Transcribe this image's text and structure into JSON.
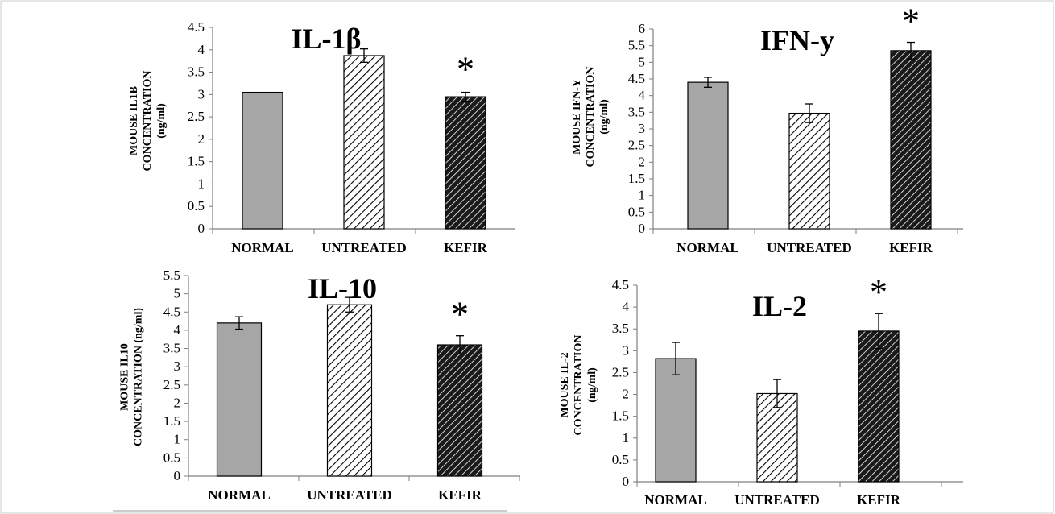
{
  "figure": {
    "colors": {
      "normal": "#a6a6a6",
      "untreated_hatch": "#000000",
      "untreated_bg": "#ffffff",
      "kefir_hatch": "#ffffff",
      "kefir_bg": "#1a1a1a",
      "axis": "#7f7f7f",
      "error_bar": "#000000"
    }
  },
  "chart_data": [
    {
      "type": "bar",
      "title": "IL-1β",
      "ylabel_lines": [
        "MOUSE IL1B",
        "CONCENTRATION",
        "(ng/ml)"
      ],
      "categories": [
        "NORMAL",
        "UNTREATED",
        "KEFIR"
      ],
      "values": [
        3.05,
        3.87,
        2.95
      ],
      "errors": [
        0.0,
        0.15,
        0.1
      ],
      "ylim": [
        0,
        4.5
      ],
      "yticks": [
        "0",
        "0.5",
        "1",
        "1.5",
        "2",
        "2.5",
        "3",
        "3.5",
        "4",
        "4.5"
      ],
      "significance": [
        "",
        "",
        "*"
      ],
      "patterns": [
        "solid",
        "hatch-light",
        "hatch-dark"
      ]
    },
    {
      "type": "bar",
      "title": "IFN-y",
      "ylabel_lines": [
        "MOUSE IFN-Y",
        "CONCENTRATION",
        "(ng/ml)"
      ],
      "categories": [
        "NORMAL",
        "UNTREATED",
        "KEFIR"
      ],
      "values": [
        4.4,
        3.47,
        5.35
      ],
      "errors": [
        0.15,
        0.28,
        0.25
      ],
      "ylim": [
        0,
        6
      ],
      "yticks": [
        "0",
        "0.5",
        "1",
        "1.5",
        "2",
        "2.5",
        "3",
        "3.5",
        "4",
        "4.5",
        "5",
        "5.5",
        "6"
      ],
      "significance": [
        "",
        "",
        "*"
      ],
      "patterns": [
        "solid",
        "hatch-light",
        "hatch-dark"
      ]
    },
    {
      "type": "bar",
      "title": "IL-10",
      "ylabel_lines": [
        "MOUSE IL10",
        "CONCENTRATION (ng/ml)"
      ],
      "categories": [
        "NORMAL",
        "UNTREATED",
        "KEFIR"
      ],
      "values": [
        4.2,
        4.7,
        3.6
      ],
      "errors": [
        0.17,
        0.2,
        0.25
      ],
      "ylim": [
        0,
        5.5
      ],
      "yticks": [
        "0",
        "0.5",
        "1",
        "1.5",
        "2",
        "2.5",
        "3",
        "3.5",
        "4",
        "4.5",
        "5",
        "5.5"
      ],
      "significance": [
        "",
        "",
        "*"
      ],
      "patterns": [
        "solid",
        "hatch-light",
        "hatch-dark"
      ]
    },
    {
      "type": "bar",
      "title": "IL-2",
      "ylabel_lines": [
        "MOUSE IL-2",
        "CONCENTRATION",
        "(ng/ml)"
      ],
      "categories": [
        "NORMAL",
        "UNTREATED",
        "KEFIR"
      ],
      "values": [
        2.82,
        2.02,
        3.45
      ],
      "errors": [
        0.37,
        0.32,
        0.4
      ],
      "ylim": [
        0,
        4.5
      ],
      "yticks": [
        "0",
        "0.5",
        "1",
        "1.5",
        "2",
        "2.5",
        "3",
        "3.5",
        "4",
        "4.5"
      ],
      "significance": [
        "",
        "",
        "*"
      ],
      "patterns": [
        "solid",
        "hatch-light",
        "hatch-dark"
      ]
    }
  ]
}
